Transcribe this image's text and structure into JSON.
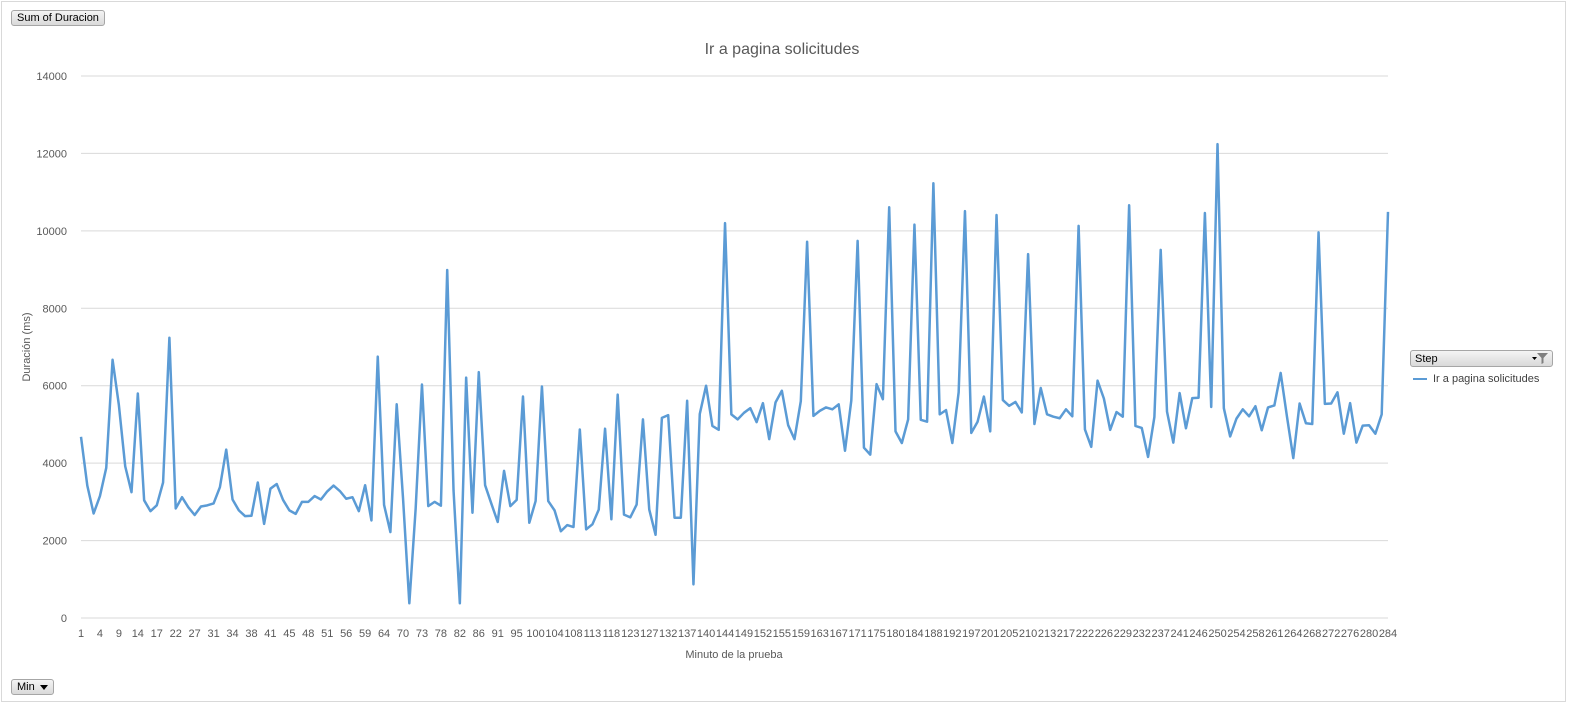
{
  "buttons": {
    "sum_field": "Sum of Duracion",
    "min_field": "Min",
    "step_field": "Step"
  },
  "chart_data": {
    "type": "line",
    "title": "Ir a pagina solicitudes",
    "xlabel": "Minuto de la prueba",
    "ylabel": "Duración (ms)",
    "ylim": [
      0,
      14000
    ],
    "yticks": [
      0,
      2000,
      4000,
      6000,
      8000,
      10000,
      12000,
      14000
    ],
    "grid": true,
    "legend_position": "right",
    "color": "#5b9bd5",
    "x_tick_labels": [
      "1",
      "4",
      "9",
      "14",
      "17",
      "22",
      "27",
      "31",
      "34",
      "38",
      "41",
      "45",
      "48",
      "51",
      "56",
      "59",
      "64",
      "70",
      "73",
      "78",
      "82",
      "86",
      "91",
      "95",
      "100",
      "104",
      "108",
      "113",
      "118",
      "123",
      "127",
      "132",
      "137",
      "140",
      "144",
      "149",
      "152",
      "155",
      "159",
      "163",
      "167",
      "171",
      "175",
      "180",
      "184",
      "188",
      "192",
      "197",
      "201",
      "205",
      "210",
      "213",
      "217",
      "222",
      "226",
      "229",
      "232",
      "237",
      "241",
      "246",
      "250",
      "254",
      "258",
      "261",
      "264",
      "268",
      "272",
      "276",
      "280",
      "284"
    ],
    "series": [
      {
        "name": "Ir a pagina solicitudes",
        "values": [
          4680,
          3420,
          2700,
          3150,
          3880,
          6670,
          5500,
          3920,
          3250,
          5800,
          3040,
          2760,
          2910,
          3500,
          7240,
          2830,
          3120,
          2860,
          2660,
          2880,
          2910,
          2960,
          3380,
          4350,
          3060,
          2780,
          2630,
          2640,
          3500,
          2430,
          3340,
          3460,
          3050,
          2780,
          2690,
          3000,
          3000,
          3150,
          3060,
          3270,
          3420,
          3280,
          3080,
          3120,
          2760,
          3430,
          2520,
          6750,
          2920,
          2220,
          5520,
          3100,
          380,
          2820,
          6030,
          2890,
          3000,
          2900,
          8990,
          3300,
          380,
          6210,
          2720,
          6350,
          3430,
          2950,
          2480,
          3800,
          2890,
          3050,
          5720,
          2460,
          3020,
          5980,
          3020,
          2780,
          2240,
          2400,
          2350,
          4870,
          2290,
          2420,
          2800,
          4890,
          2550,
          5770,
          2670,
          2600,
          2930,
          5130,
          2800,
          2150,
          5170,
          5240,
          2590,
          2590,
          5610,
          870,
          5270,
          6000,
          4960,
          4860,
          10200,
          5260,
          5130,
          5300,
          5420,
          5060,
          5550,
          4620,
          5570,
          5870,
          4980,
          4620,
          5600,
          9720,
          5220,
          5350,
          5440,
          5390,
          5520,
          4320,
          5620,
          9740,
          4400,
          4220,
          6040,
          5650,
          10610,
          4820,
          4520,
          5130,
          10160,
          5120,
          5070,
          11230,
          5260,
          5370,
          4520,
          5830,
          10510,
          4780,
          5070,
          5720,
          4820,
          10410,
          5630,
          5480,
          5580,
          5310,
          9400,
          5010,
          5940,
          5260,
          5200,
          5160,
          5390,
          5210,
          10130,
          4870,
          4420,
          6130,
          5670,
          4860,
          5320,
          5200,
          10660,
          4960,
          4910,
          4160,
          5190,
          9510,
          5330,
          4530,
          5810,
          4900,
          5680,
          5690,
          10460,
          5450,
          12240,
          5420,
          4690,
          5150,
          5390,
          5210,
          5470,
          4850,
          5440,
          5490,
          6330,
          5200,
          4130,
          5540,
          5030,
          5010,
          9960,
          5530,
          5540,
          5830,
          4760,
          5550,
          4530,
          4970,
          4980,
          4760,
          5260,
          10490
        ]
      }
    ]
  }
}
